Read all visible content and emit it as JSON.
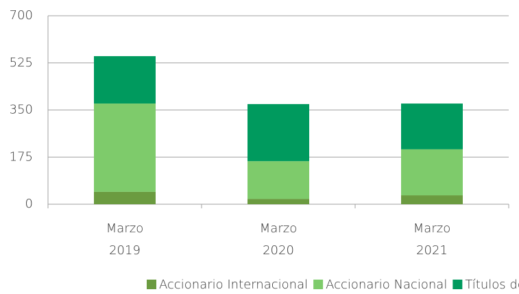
{
  "chart_data": {
    "type": "stacked_bar",
    "categories": [
      "Marzo 2019",
      "Marzo 2020",
      "Marzo 2021"
    ],
    "series": [
      {
        "name": "Accionario Internacional",
        "color": "#6b9b40",
        "values": [
          46,
          20,
          33
        ]
      },
      {
        "name": "Accionario Nacional",
        "color": "#7ecb6b",
        "values": [
          328,
          140,
          171
        ]
      },
      {
        "name": "Títulos de Deuda",
        "color": "#009a5e",
        "values": [
          176,
          212,
          170
        ]
      }
    ],
    "ylim": [
      0,
      700
    ],
    "yticks": [
      0,
      175,
      350,
      525,
      700
    ],
    "grid": true,
    "legend": "bottom"
  }
}
